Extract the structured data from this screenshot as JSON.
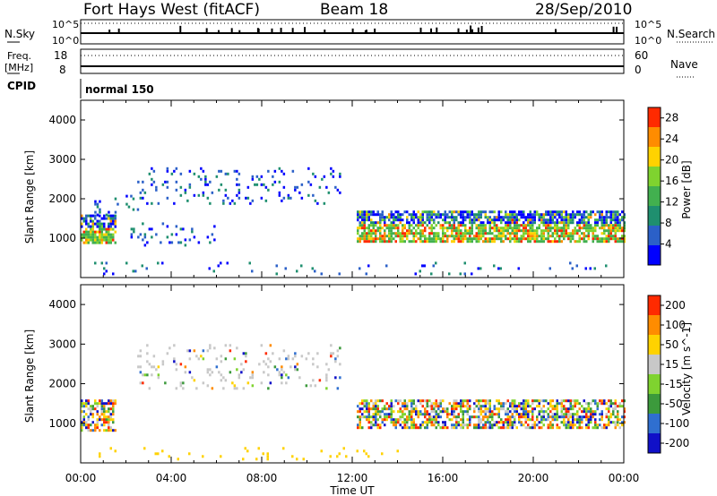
{
  "header": {
    "station": "Fort Hays West (fitACF)",
    "beam": "Beam 18",
    "date": "28/Sep/2010"
  },
  "top_panels": {
    "nsky_label": "N.Sky",
    "nsky_ticks": [
      "10^5",
      "10^0"
    ],
    "nsearch_label": "N.Search",
    "nsearch_ticks": [
      "10^5",
      "10^0"
    ],
    "freq_label": "Freq.",
    "freq_unit": "[MHz]",
    "freq_ticks": [
      "18",
      "8"
    ],
    "nave_label": "Nave",
    "nave_ticks": [
      "60",
      "0"
    ],
    "cpid_label": "CPID",
    "cpid_value": "normal 150"
  },
  "chart_data": [
    {
      "type": "heatmap",
      "name": "power",
      "xlabel": "",
      "ylabel": "Slant Range [km]",
      "x_ticks": [
        "00:00",
        "04:00",
        "08:00",
        "12:00",
        "16:00",
        "20:00",
        "00:00"
      ],
      "x_range_hours": [
        0,
        24
      ],
      "ylim": [
        0,
        4500
      ],
      "y_ticks": [
        1000,
        2000,
        3000,
        4000
      ],
      "colorbar": {
        "label": "Power [dB]",
        "ticks": [
          4,
          8,
          12,
          16,
          20,
          24,
          28
        ],
        "range": [
          0,
          30
        ],
        "colors": [
          "#0000ff",
          "#2b60c8",
          "#1f8f6f",
          "#42b04f",
          "#7fd32f",
          "#ffd200",
          "#ff8c00",
          "#ff2a00"
        ]
      },
      "regions": [
        {
          "t": [
            0.0,
            1.5
          ],
          "r": [
            850,
            1600
          ],
          "level": "strong"
        },
        {
          "t": [
            0.6,
            2.5
          ],
          "r": [
            1600,
            2100
          ],
          "level": "weak"
        },
        {
          "t": [
            2.5,
            11.5
          ],
          "r": [
            1900,
            2800
          ],
          "level": "weak"
        },
        {
          "t": [
            2.2,
            6.0
          ],
          "r": [
            800,
            1400
          ],
          "level": "weak"
        },
        {
          "t": [
            12.2,
            24.0
          ],
          "r": [
            900,
            1700
          ],
          "level": "strong"
        },
        {
          "t": [
            0.0,
            24.0
          ],
          "r": [
            100,
            400
          ],
          "level": "sparse"
        }
      ]
    },
    {
      "type": "heatmap",
      "name": "velocity",
      "xlabel": "Time UT",
      "ylabel": "Slant Range [km]",
      "x_ticks": [
        "00:00",
        "04:00",
        "08:00",
        "12:00",
        "16:00",
        "20:00",
        "00:00"
      ],
      "x_range_hours": [
        0,
        24
      ],
      "ylim": [
        0,
        4500
      ],
      "y_ticks": [
        1000,
        2000,
        3000,
        4000
      ],
      "colorbar": {
        "label": "Velocity [m s^-1]",
        "ticks": [
          200,
          100,
          50,
          15,
          -15,
          -50,
          -100,
          -200
        ],
        "colors": [
          "#1010c8",
          "#2f6fd0",
          "#3c9a3c",
          "#7fd32f",
          "#c8c8c8",
          "#ffd200",
          "#ff8c00",
          "#ff2a00"
        ]
      },
      "regions": [
        {
          "t": [
            0.0,
            1.5
          ],
          "r": [
            850,
            1600
          ],
          "level": "mixed"
        },
        {
          "t": [
            2.5,
            11.5
          ],
          "r": [
            1900,
            3000
          ],
          "level": "weak"
        },
        {
          "t": [
            12.2,
            24.0
          ],
          "r": [
            900,
            1600
          ],
          "level": "mixed"
        },
        {
          "t": [
            0.0,
            14.0
          ],
          "r": [
            100,
            400
          ],
          "level": "sparse"
        }
      ]
    }
  ]
}
